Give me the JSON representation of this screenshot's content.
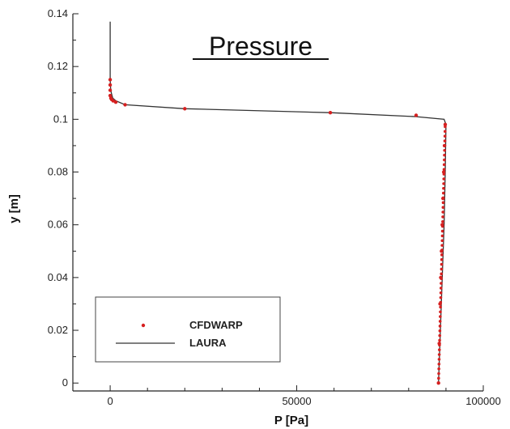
{
  "chart_data": {
    "type": "line",
    "title": "Pressure",
    "xlabel": "P [Pa]",
    "ylabel": "y [m]",
    "xlim": [
      -10000,
      100000
    ],
    "ylim": [
      -0.003,
      0.14
    ],
    "x_ticks": [
      0,
      50000,
      100000
    ],
    "x_tick_labels": [
      "0",
      "50000",
      "100000"
    ],
    "y_ticks": [
      0,
      0.02,
      0.04,
      0.06,
      0.08,
      0.1,
      0.12,
      0.14
    ],
    "y_tick_labels": [
      "0",
      "0.02",
      "0.04",
      "0.06",
      "0.08",
      "0.1",
      "0.12",
      "0.14"
    ],
    "grid": false,
    "legend_position": "bottom-left",
    "colors": {
      "cfdwarp": "#d62020",
      "laura": "#333333"
    },
    "series": [
      {
        "name": "LAURA",
        "style": "line",
        "x": [
          0,
          0,
          0,
          100,
          300,
          700,
          1500,
          4000,
          20000,
          59000,
          82000,
          89500,
          90000,
          89800,
          89500,
          89000,
          88500,
          88000
        ],
        "y": [
          0.137,
          0.125,
          0.115,
          0.112,
          0.11,
          0.108,
          0.107,
          0.1055,
          0.104,
          0.1025,
          0.101,
          0.1,
          0.098,
          0.08,
          0.06,
          0.04,
          0.02,
          0.0
        ]
      },
      {
        "name": "CFDWARP",
        "style": "markers",
        "x": [
          0,
          0,
          0,
          0,
          200,
          400,
          800,
          1500,
          4000,
          20000,
          59000,
          82000,
          89800,
          89600,
          89400,
          89200,
          89000,
          88800,
          88600,
          88400,
          88200,
          88000
        ],
        "y": [
          0.115,
          0.113,
          0.111,
          0.109,
          0.108,
          0.1075,
          0.107,
          0.1065,
          0.1055,
          0.104,
          0.1025,
          0.1015,
          0.098,
          0.09,
          0.08,
          0.07,
          0.06,
          0.05,
          0.04,
          0.03,
          0.015,
          0.0
        ]
      }
    ]
  }
}
